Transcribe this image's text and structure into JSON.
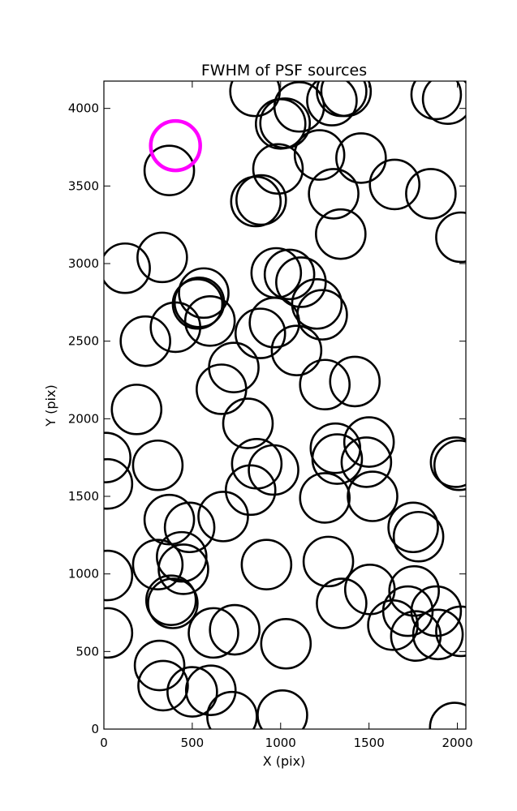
{
  "chart_data": {
    "type": "scatter",
    "title": "FWHM of PSF sources",
    "xlabel": "X (pix)",
    "ylabel": "Y (pix)",
    "xlim": [
      0,
      2048
    ],
    "ylim": [
      0,
      4176
    ],
    "xticks": [
      0,
      500,
      1000,
      1500,
      2000
    ],
    "yticks": [
      0,
      500,
      1000,
      1500,
      2000,
      2500,
      3000,
      3500,
      4000
    ],
    "grid": false,
    "marker": "circle",
    "circle_radius": 140,
    "highlight": {
      "color": "#ff00ff",
      "points": [
        [
          405,
          3760
        ]
      ]
    },
    "series": [
      {
        "color": "#000000",
        "points": [
          [
            855,
            4110
          ],
          [
            1105,
            4010
          ],
          [
            1290,
            4050
          ],
          [
            1345,
            4110
          ],
          [
            1370,
            4110
          ],
          [
            1880,
            4090
          ],
          [
            1945,
            4060
          ],
          [
            1000,
            3900
          ],
          [
            1025,
            3905
          ],
          [
            370,
            3600
          ],
          [
            985,
            3610
          ],
          [
            1220,
            3700
          ],
          [
            1455,
            3680
          ],
          [
            1645,
            3510
          ],
          [
            1850,
            3450
          ],
          [
            860,
            3400
          ],
          [
            890,
            3410
          ],
          [
            1300,
            3450
          ],
          [
            1340,
            3190
          ],
          [
            2020,
            3170
          ],
          [
            120,
            2970
          ],
          [
            330,
            3040
          ],
          [
            975,
            2940
          ],
          [
            1050,
            2930
          ],
          [
            1115,
            2880
          ],
          [
            565,
            2810
          ],
          [
            540,
            2750
          ],
          [
            530,
            2740
          ],
          [
            1205,
            2740
          ],
          [
            1235,
            2670
          ],
          [
            600,
            2630
          ],
          [
            405,
            2590
          ],
          [
            965,
            2620
          ],
          [
            885,
            2550
          ],
          [
            1090,
            2440
          ],
          [
            235,
            2500
          ],
          [
            735,
            2330
          ],
          [
            665,
            2190
          ],
          [
            1250,
            2220
          ],
          [
            1420,
            2240
          ],
          [
            185,
            2060
          ],
          [
            815,
            1970
          ],
          [
            1310,
            1810
          ],
          [
            1320,
            1740
          ],
          [
            1500,
            1850
          ],
          [
            1485,
            1720
          ],
          [
            10,
            1750
          ],
          [
            20,
            1580
          ],
          [
            305,
            1700
          ],
          [
            865,
            1710
          ],
          [
            960,
            1670
          ],
          [
            830,
            1540
          ],
          [
            1250,
            1490
          ],
          [
            1520,
            1500
          ],
          [
            1990,
            1720
          ],
          [
            2010,
            1700
          ],
          [
            370,
            1350
          ],
          [
            485,
            1300
          ],
          [
            675,
            1370
          ],
          [
            1750,
            1300
          ],
          [
            1780,
            1240
          ],
          [
            20,
            990
          ],
          [
            305,
            1060
          ],
          [
            440,
            1110
          ],
          [
            450,
            1030
          ],
          [
            390,
            810
          ],
          [
            380,
            830
          ],
          [
            920,
            1060
          ],
          [
            1270,
            1080
          ],
          [
            1505,
            900
          ],
          [
            1755,
            890
          ],
          [
            1720,
            760
          ],
          [
            1345,
            810
          ],
          [
            1635,
            670
          ],
          [
            1765,
            600
          ],
          [
            1880,
            760
          ],
          [
            1890,
            610
          ],
          [
            2020,
            630
          ],
          [
            20,
            620
          ],
          [
            620,
            620
          ],
          [
            740,
            640
          ],
          [
            1030,
            550
          ],
          [
            315,
            410
          ],
          [
            335,
            280
          ],
          [
            500,
            240
          ],
          [
            605,
            250
          ],
          [
            725,
            80
          ],
          [
            1010,
            90
          ],
          [
            1985,
            10
          ]
        ]
      }
    ]
  }
}
